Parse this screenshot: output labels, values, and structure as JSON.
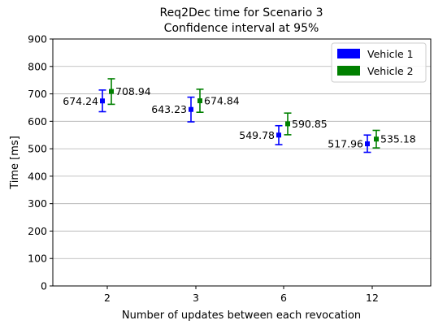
{
  "chart_data": {
    "type": "scatter",
    "title": "Req2Dec time for Scenario 3",
    "subtitle": "Confidence interval at 95%",
    "xlabel": "Number of updates between each revocation",
    "ylabel": "Time [ms]",
    "categories": [
      "2",
      "3",
      "6",
      "12"
    ],
    "ylim": [
      0,
      900
    ],
    "yticks": [
      0,
      100,
      200,
      300,
      400,
      500,
      600,
      700,
      800,
      900
    ],
    "grid": true,
    "legend_position": "top-right",
    "series": [
      {
        "name": "Vehicle 1",
        "color": "#0000ff",
        "values": [
          674.24,
          643.23,
          549.78,
          517.96
        ],
        "labels": [
          "674.24",
          "643.23",
          "549.78",
          "517.96"
        ],
        "lower": [
          635,
          598,
          515,
          487
        ],
        "upper": [
          714,
          688,
          584,
          550
        ]
      },
      {
        "name": "Vehicle 2",
        "color": "#008000",
        "values": [
          708.94,
          674.84,
          590.85,
          535.18
        ],
        "labels": [
          "708.94",
          "674.84",
          "590.85",
          "535.18"
        ],
        "lower": [
          662,
          633,
          551,
          503
        ],
        "upper": [
          755,
          717,
          630,
          567
        ]
      }
    ]
  }
}
